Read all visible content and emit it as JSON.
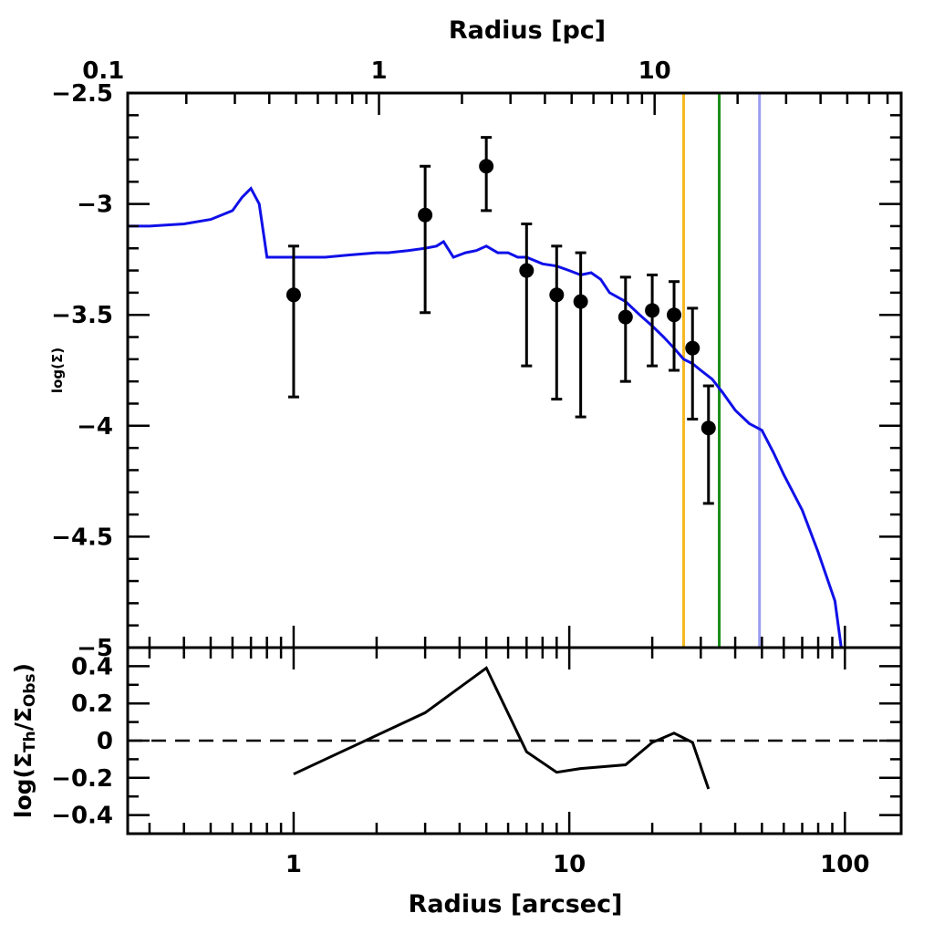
{
  "chart_data": [
    {
      "type": "line",
      "panel": "top",
      "x_axis_top": {
        "title": "Radius [pc]",
        "tick_labels": [
          "0.1",
          "1",
          "10"
        ],
        "tick_values_arcsec": [
          0.204,
          2.04,
          20.4
        ]
      },
      "ylabel": "log(Σ)",
      "xscale": "log",
      "xlim": [
        0.25,
        160
      ],
      "ylim": [
        -5.0,
        -2.5
      ],
      "y_tick_labels": [
        "−2.5",
        "−3",
        "−3.5",
        "−4",
        "−4.5",
        "−5"
      ],
      "y_tick_values": [
        -2.5,
        -3.0,
        -3.5,
        -4.0,
        -4.5,
        -5.0
      ],
      "model_line": {
        "color": "#1010e8",
        "x": [
          0.25,
          0.3,
          0.4,
          0.5,
          0.6,
          0.65,
          0.7,
          0.75,
          0.8,
          1.0,
          1.3,
          1.6,
          2.0,
          2.2,
          2.6,
          3.0,
          3.3,
          3.5,
          3.8,
          4.2,
          4.6,
          5.0,
          5.5,
          6.0,
          6.5,
          7.0,
          8.0,
          9.0,
          10.0,
          11.0,
          12.0,
          13.0,
          14.0,
          16.0,
          18.0,
          20.0,
          22.0,
          24.0,
          26.0,
          28.0,
          30.0,
          33.0,
          36.0,
          40.0,
          45.0,
          50.0,
          55.0,
          60.0,
          70.0,
          80.0,
          92.0,
          97.0
        ],
        "y": [
          -3.1,
          -3.1,
          -3.09,
          -3.07,
          -3.03,
          -2.97,
          -2.93,
          -3.0,
          -3.24,
          -3.24,
          -3.24,
          -3.23,
          -3.22,
          -3.22,
          -3.21,
          -3.2,
          -3.19,
          -3.17,
          -3.24,
          -3.22,
          -3.21,
          -3.19,
          -3.22,
          -3.22,
          -3.24,
          -3.24,
          -3.27,
          -3.28,
          -3.3,
          -3.32,
          -3.31,
          -3.34,
          -3.4,
          -3.44,
          -3.5,
          -3.55,
          -3.6,
          -3.65,
          -3.7,
          -3.72,
          -3.75,
          -3.79,
          -3.85,
          -3.93,
          -3.99,
          -4.02,
          -4.12,
          -4.22,
          -4.38,
          -4.57,
          -4.79,
          -5.0
        ]
      },
      "observed": {
        "x": [
          1.0,
          3.0,
          5.0,
          7.0,
          9.0,
          11.0,
          16.0,
          20.0,
          24.0,
          28.0,
          32.0
        ],
        "y": [
          -3.41,
          -3.05,
          -2.83,
          -3.3,
          -3.41,
          -3.44,
          -3.51,
          -3.48,
          -3.5,
          -3.65,
          -4.01
        ],
        "err_low": [
          0.46,
          0.44,
          0.2,
          0.43,
          0.47,
          0.52,
          0.29,
          0.25,
          0.25,
          0.32,
          0.34
        ],
        "err_high": [
          0.22,
          0.22,
          0.13,
          0.21,
          0.22,
          0.22,
          0.18,
          0.16,
          0.15,
          0.18,
          0.19
        ]
      },
      "vertical_lines": [
        {
          "x": 26.0,
          "color": "#f5b820"
        },
        {
          "x": 35.0,
          "color": "#1a8c1a"
        },
        {
          "x": 49.0,
          "color": "#9a9ef0"
        }
      ]
    },
    {
      "type": "line",
      "panel": "bottom",
      "xlabel": "Radius [arcsec]",
      "ylabel": "log(Σ_Th/Σ_Obs)",
      "xscale": "log",
      "xlim": [
        0.25,
        160
      ],
      "ylim": [
        -0.5,
        0.5
      ],
      "x_tick_labels": [
        "1",
        "10",
        "100"
      ],
      "x_tick_values": [
        1,
        10,
        100
      ],
      "y_tick_labels": [
        "0.4",
        "0.2",
        "0",
        "−0.2",
        "−0.4"
      ],
      "y_tick_values": [
        0.4,
        0.2,
        0.0,
        -0.2,
        -0.4
      ],
      "residual": {
        "x": [
          1.0,
          3.0,
          5.0,
          7.0,
          9.0,
          11.0,
          16.0,
          20.0,
          24.0,
          28.0,
          32.0
        ],
        "y": [
          -0.18,
          0.15,
          0.39,
          -0.06,
          -0.17,
          -0.15,
          -0.13,
          -0.01,
          0.04,
          -0.01,
          -0.26
        ]
      },
      "zero_line": {
        "y": 0.0,
        "style": "dashed"
      }
    }
  ]
}
